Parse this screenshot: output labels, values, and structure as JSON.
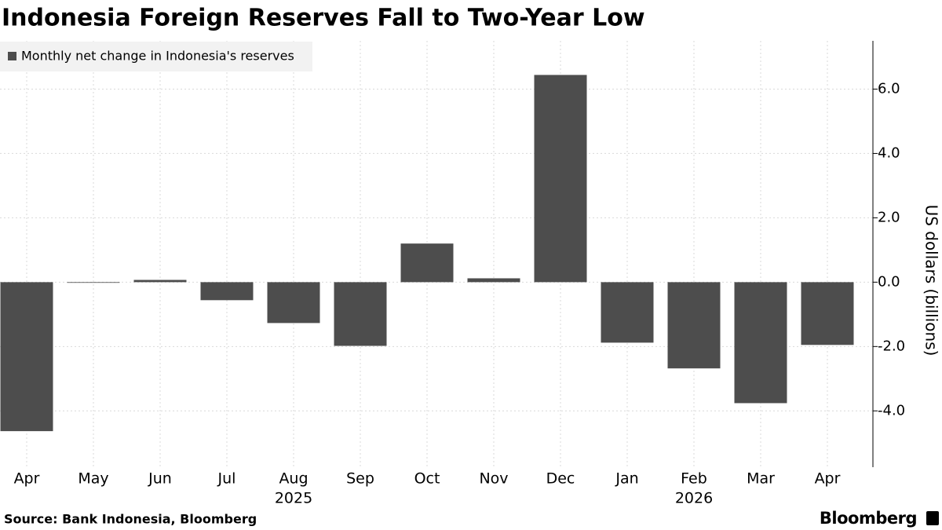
{
  "chart_data": {
    "type": "bar",
    "title": "Indonesia Foreign Reserves Fall to Two-Year Low",
    "y_axis_label": "US dollars (billions)",
    "source": "Source: Bank Indonesia, Bloomberg",
    "brand": "Bloomberg",
    "categories": [
      "Apr",
      "May",
      "Jun",
      "Jul",
      "Aug",
      "Sep",
      "Oct",
      "Nov",
      "Dec",
      "Jan",
      "Feb",
      "Mar",
      "Apr"
    ],
    "years": [
      null,
      null,
      null,
      null,
      "2025",
      null,
      null,
      null,
      null,
      null,
      "2026",
      null,
      null
    ],
    "series": [
      {
        "name": "Monthly net change in Indonesia's reserves",
        "color": "#4d4d4d",
        "values": [
          -4.63,
          -0.02,
          0.07,
          -0.56,
          -1.27,
          -1.98,
          1.2,
          0.12,
          6.44,
          -1.88,
          -2.68,
          -3.76,
          -1.95
        ]
      }
    ],
    "ylim": [
      -5.75,
      7.5
    ],
    "yticks": [
      {
        "value": -4,
        "label": "-4.0"
      },
      {
        "value": -2,
        "label": "-2.0"
      },
      {
        "value": 0,
        "label": "0.0"
      },
      {
        "value": 2,
        "label": "2.0"
      },
      {
        "value": 4,
        "label": "4.0"
      },
      {
        "value": 6,
        "label": "6.0"
      }
    ],
    "grid": true,
    "legend": "top-left"
  }
}
